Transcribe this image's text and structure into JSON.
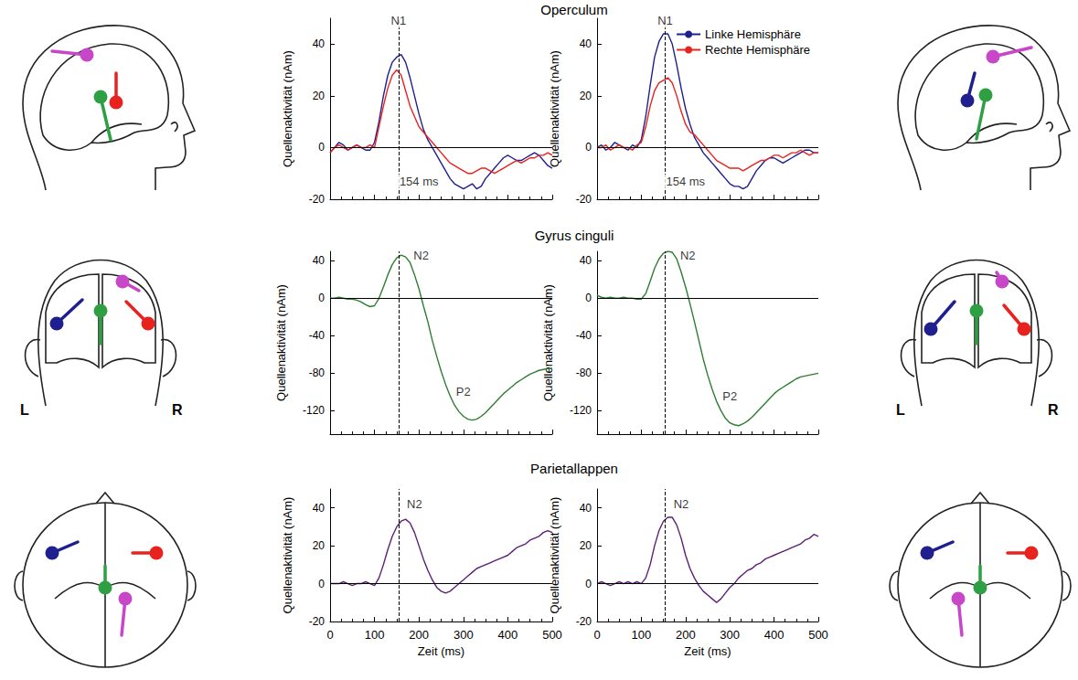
{
  "row_titles": [
    "Operculum",
    "Gyrus cinguli",
    "Parietallappen"
  ],
  "head_labels": [
    "L",
    "R"
  ],
  "chart_data": [
    {
      "type": "line",
      "y_label": "Quellenaktivität (nAm)",
      "x": [
        0,
        10,
        20,
        30,
        40,
        50,
        60,
        70,
        80,
        90,
        100,
        110,
        120,
        130,
        140,
        150,
        160,
        170,
        180,
        190,
        200,
        210,
        220,
        230,
        240,
        250,
        260,
        270,
        280,
        290,
        300,
        310,
        320,
        330,
        340,
        350,
        360,
        370,
        380,
        390,
        400,
        410,
        420,
        430,
        440,
        450,
        460,
        470,
        480,
        490,
        500
      ],
      "xlim": [
        0,
        500
      ],
      "xticks": [
        0,
        100,
        200,
        300,
        400,
        500
      ],
      "ylim": [
        -20,
        50
      ],
      "yticks": [
        -20,
        0,
        20,
        40
      ],
      "tick_labels": "y",
      "grid": false,
      "hline": 0,
      "vline": 154,
      "series": [
        {
          "name": "Linke Hemisphäre",
          "color": "#1f1f8f",
          "values": [
            -2,
            0,
            2,
            1,
            -1,
            0,
            1,
            0,
            -1,
            -1,
            2,
            10,
            20,
            28,
            33,
            35,
            36,
            33,
            27,
            20,
            13,
            7,
            3,
            0,
            -3,
            -6,
            -9,
            -12,
            -14,
            -15,
            -16,
            -15,
            -14,
            -16,
            -15,
            -12,
            -10,
            -8,
            -6,
            -4,
            -3,
            -4,
            -5,
            -5,
            -4,
            -3,
            -2,
            -3,
            -5,
            -7,
            -8
          ]
        },
        {
          "name": "Rechte Hemisphäre",
          "color": "#e8231f",
          "values": [
            -2,
            0,
            1,
            0,
            -1,
            0,
            1,
            0,
            0,
            1,
            0,
            8,
            16,
            23,
            28,
            30,
            28,
            22,
            16,
            12,
            8,
            6,
            4,
            2,
            0,
            -2,
            -4,
            -6,
            -7,
            -8,
            -9,
            -10,
            -10,
            -9,
            -8,
            -8,
            -9,
            -10,
            -9,
            -8,
            -7,
            -6,
            -5,
            -6,
            -5,
            -4,
            -4,
            -3,
            -3,
            -2,
            -3
          ]
        }
      ],
      "annotations": [
        {
          "text": "N1",
          "x": 154,
          "y": 49
        },
        {
          "text": "154 ms",
          "x": 200,
          "y": -13
        }
      ]
    },
    {
      "type": "line",
      "y_label": "Quellenaktivität (nAm)",
      "x": [
        0,
        10,
        20,
        30,
        40,
        50,
        60,
        70,
        80,
        90,
        100,
        110,
        120,
        130,
        140,
        150,
        160,
        170,
        180,
        190,
        200,
        210,
        220,
        230,
        240,
        250,
        260,
        270,
        280,
        290,
        300,
        310,
        320,
        330,
        340,
        350,
        360,
        370,
        380,
        390,
        400,
        410,
        420,
        430,
        440,
        450,
        460,
        470,
        480,
        490,
        500
      ],
      "xlim": [
        0,
        500
      ],
      "xticks": [
        0,
        100,
        200,
        300,
        400,
        500
      ],
      "ylim": [
        -20,
        50
      ],
      "yticks": [
        -20,
        0,
        20,
        40
      ],
      "tick_labels": "y",
      "grid": false,
      "hline": 0,
      "vline": 154,
      "legend": "upper right",
      "series": [
        {
          "name": "Linke Hemisphäre",
          "color": "#1f1f8f",
          "values": [
            0,
            1,
            -1,
            0,
            2,
            1,
            0,
            -1,
            1,
            0,
            3,
            12,
            24,
            35,
            41,
            44,
            44,
            40,
            32,
            23,
            15,
            9,
            4,
            1,
            -2,
            -4,
            -6,
            -8,
            -10,
            -12,
            -14,
            -15,
            -15,
            -16,
            -15,
            -12,
            -9,
            -7,
            -5,
            -4,
            -4,
            -5,
            -6,
            -5,
            -4,
            -3,
            -2,
            -1,
            -1,
            -2,
            -2
          ]
        },
        {
          "name": "Rechte Hemisphäre",
          "color": "#e8231f",
          "values": [
            0,
            0,
            1,
            -1,
            0,
            1,
            0,
            0,
            -1,
            1,
            2,
            8,
            16,
            22,
            25,
            26,
            27,
            25,
            20,
            14,
            9,
            6,
            5,
            3,
            1,
            -1,
            -3,
            -5,
            -6,
            -7,
            -8,
            -8,
            -8,
            -9,
            -8,
            -7,
            -6,
            -5,
            -5,
            -4,
            -3,
            -3,
            -4,
            -3,
            -2,
            -2,
            -1,
            -2,
            -3,
            -2,
            -2
          ]
        }
      ],
      "annotations": [
        {
          "text": "N1",
          "x": 154,
          "y": 49
        },
        {
          "text": "154 ms",
          "x": 200,
          "y": -13
        }
      ]
    },
    {
      "type": "line",
      "y_label": "Quellenaktivität (nAm)",
      "x": [
        0,
        10,
        20,
        30,
        40,
        50,
        60,
        70,
        80,
        90,
        100,
        110,
        120,
        130,
        140,
        150,
        160,
        170,
        180,
        190,
        200,
        210,
        220,
        230,
        240,
        250,
        260,
        270,
        280,
        290,
        300,
        310,
        320,
        330,
        340,
        350,
        360,
        370,
        380,
        390,
        400,
        410,
        420,
        430,
        440,
        450,
        460,
        470,
        480,
        490,
        500
      ],
      "xlim": [
        0,
        500
      ],
      "xticks": [
        0,
        100,
        200,
        300,
        400,
        500
      ],
      "ylim": [
        -145,
        50
      ],
      "yticks": [
        -120,
        -80,
        -40,
        0,
        40
      ],
      "tick_labels": "y",
      "grid": false,
      "hline": 0,
      "vline": 154,
      "series": [
        {
          "color": "#2e7d32",
          "values": [
            0,
            0,
            1,
            0,
            -1,
            -1,
            -2,
            -4,
            -7,
            -9,
            -8,
            0,
            12,
            25,
            36,
            43,
            46,
            44,
            38,
            25,
            10,
            -8,
            -25,
            -45,
            -62,
            -78,
            -92,
            -104,
            -114,
            -121,
            -126,
            -129,
            -130,
            -129,
            -126,
            -122,
            -117,
            -112,
            -107,
            -102,
            -98,
            -94,
            -90,
            -87,
            -84,
            -81,
            -79,
            -77,
            -76,
            -75,
            -75
          ]
        }
      ],
      "annotations": [
        {
          "text": "N2",
          "x": 205,
          "y": 46
        },
        {
          "text": "P2",
          "x": 300,
          "y": -100
        }
      ]
    },
    {
      "type": "line",
      "y_label": "Quellenaktivität (nAm)",
      "x": [
        0,
        10,
        20,
        30,
        40,
        50,
        60,
        70,
        80,
        90,
        100,
        110,
        120,
        130,
        140,
        150,
        160,
        170,
        180,
        190,
        200,
        210,
        220,
        230,
        240,
        250,
        260,
        270,
        280,
        290,
        300,
        310,
        320,
        330,
        340,
        350,
        360,
        370,
        380,
        390,
        400,
        410,
        420,
        430,
        440,
        450,
        460,
        470,
        480,
        490,
        500
      ],
      "xlim": [
        0,
        500
      ],
      "xticks": [
        0,
        100,
        200,
        300,
        400,
        500
      ],
      "ylim": [
        -145,
        50
      ],
      "yticks": [
        -120,
        -80,
        -40,
        0,
        40
      ],
      "tick_labels": "y",
      "grid": false,
      "hline": 0,
      "vline": 154,
      "series": [
        {
          "color": "#2e7d32",
          "values": [
            3,
            1,
            0,
            1,
            0,
            0,
            1,
            0,
            0,
            -1,
            -1,
            5,
            18,
            32,
            42,
            48,
            50,
            49,
            42,
            28,
            12,
            -6,
            -25,
            -45,
            -65,
            -82,
            -97,
            -110,
            -120,
            -128,
            -133,
            -135,
            -136,
            -134,
            -131,
            -127,
            -122,
            -117,
            -112,
            -107,
            -102,
            -98,
            -95,
            -92,
            -89,
            -86,
            -84,
            -83,
            -82,
            -81,
            -80
          ]
        }
      ],
      "annotations": [
        {
          "text": "N2",
          "x": 205,
          "y": 46
        },
        {
          "text": "P2",
          "x": 300,
          "y": -105
        }
      ]
    },
    {
      "type": "line",
      "x_label": "Zeit (ms)",
      "y_label": "Quellenaktivität (nAm)",
      "x": [
        0,
        10,
        20,
        30,
        40,
        50,
        60,
        70,
        80,
        90,
        100,
        110,
        120,
        130,
        140,
        150,
        160,
        170,
        180,
        190,
        200,
        210,
        220,
        230,
        240,
        250,
        260,
        270,
        280,
        290,
        300,
        310,
        320,
        330,
        340,
        350,
        360,
        370,
        380,
        390,
        400,
        410,
        420,
        430,
        440,
        450,
        460,
        470,
        480,
        490,
        500
      ],
      "xlim": [
        0,
        500
      ],
      "xticks": [
        0,
        100,
        200,
        300,
        400,
        500
      ],
      "ylim": [
        -20,
        50
      ],
      "yticks": [
        -20,
        0,
        20,
        40
      ],
      "grid": false,
      "hline": 0,
      "vline": 154,
      "series": [
        {
          "color": "#5c1f73",
          "values": [
            0,
            0,
            0,
            1,
            0,
            -1,
            0,
            0,
            1,
            0,
            -1,
            3,
            10,
            18,
            25,
            30,
            33,
            34,
            32,
            27,
            20,
            13,
            7,
            2,
            -2,
            -4,
            -5,
            -4,
            -2,
            0,
            2,
            4,
            6,
            8,
            9,
            10,
            11,
            12,
            13,
            14,
            15,
            17,
            19,
            20,
            21,
            23,
            24,
            25,
            27,
            28,
            27
          ]
        }
      ],
      "annotations": [
        {
          "text": "N2",
          "x": 190,
          "y": 42
        }
      ]
    },
    {
      "type": "line",
      "x_label": "Zeit (ms)",
      "y_label": "Quellenaktivität (nAm)",
      "x": [
        0,
        10,
        20,
        30,
        40,
        50,
        60,
        70,
        80,
        90,
        100,
        110,
        120,
        130,
        140,
        150,
        160,
        170,
        180,
        190,
        200,
        210,
        220,
        230,
        240,
        250,
        260,
        270,
        280,
        290,
        300,
        310,
        320,
        330,
        340,
        350,
        360,
        370,
        380,
        390,
        400,
        410,
        420,
        430,
        440,
        450,
        460,
        470,
        480,
        490,
        500
      ],
      "xlim": [
        0,
        500
      ],
      "xticks": [
        0,
        100,
        200,
        300,
        400,
        500
      ],
      "ylim": [
        -20,
        50
      ],
      "yticks": [
        -20,
        0,
        20,
        40
      ],
      "grid": false,
      "hline": 0,
      "vline": 154,
      "series": [
        {
          "color": "#5c1f73",
          "values": [
            0,
            1,
            0,
            -1,
            0,
            1,
            0,
            1,
            0,
            1,
            0,
            3,
            10,
            20,
            28,
            33,
            35,
            35,
            31,
            24,
            15,
            8,
            3,
            -1,
            -4,
            -6,
            -8,
            -10,
            -8,
            -5,
            -2,
            0,
            3,
            5,
            7,
            8,
            10,
            11,
            13,
            14,
            15,
            16,
            17,
            18,
            19,
            20,
            21,
            23,
            24,
            26,
            25
          ]
        }
      ],
      "annotations": [
        {
          "text": "N2",
          "x": 190,
          "y": 42
        }
      ]
    }
  ]
}
